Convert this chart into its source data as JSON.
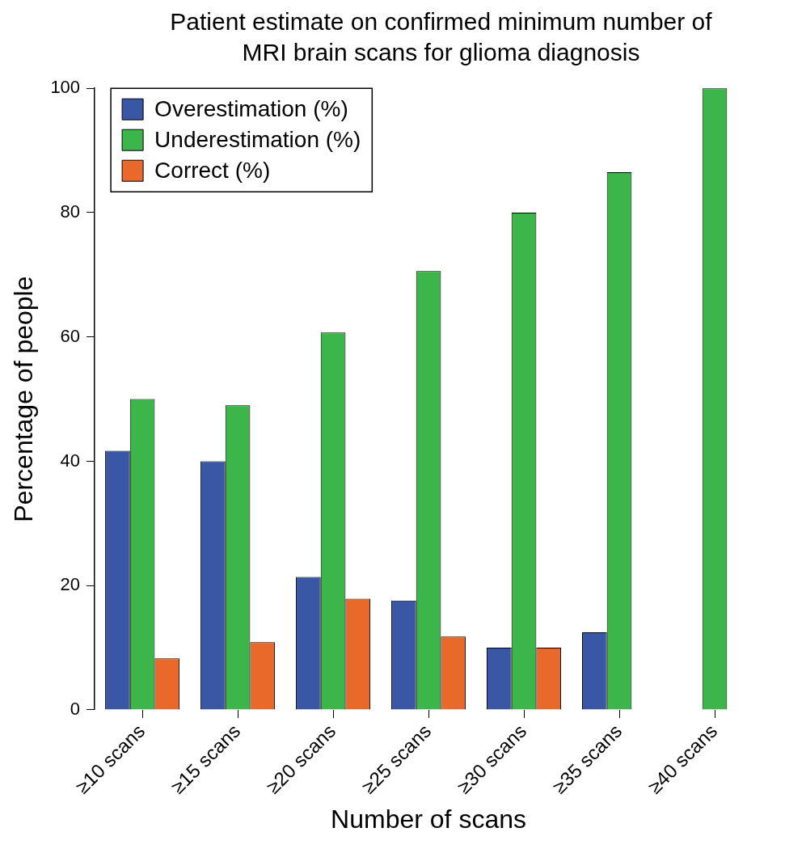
{
  "chart_data": {
    "type": "bar",
    "title": "Patient estimate on confirmed minimum number of MRI brain scans for glioma diagnosis",
    "xlabel": "Number of scans",
    "ylabel": "Percentage of people",
    "categories": [
      "≥10 scans",
      "≥15 scans",
      "≥20 scans",
      "≥25 scans",
      "≥30 scans",
      "≥35 scans",
      "≥40 scans"
    ],
    "series": [
      {
        "name": "Overestimation (%)",
        "color": "#3a57a6",
        "values": [
          41.7,
          40,
          21.4,
          17.6,
          10,
          12.5,
          0
        ]
      },
      {
        "name": "Underestimation (%)",
        "color": "#3cb54a",
        "values": [
          50,
          49,
          60.7,
          70.6,
          80,
          86.5,
          100
        ]
      },
      {
        "name": "Correct (%)",
        "color": "#e8692a",
        "values": [
          8.3,
          10.9,
          17.9,
          11.8,
          10,
          0,
          0
        ]
      }
    ],
    "ylim": [
      0,
      100
    ],
    "yticks": [
      0,
      20,
      40,
      60,
      80,
      100
    ],
    "grid": false,
    "legend": "top left"
  }
}
